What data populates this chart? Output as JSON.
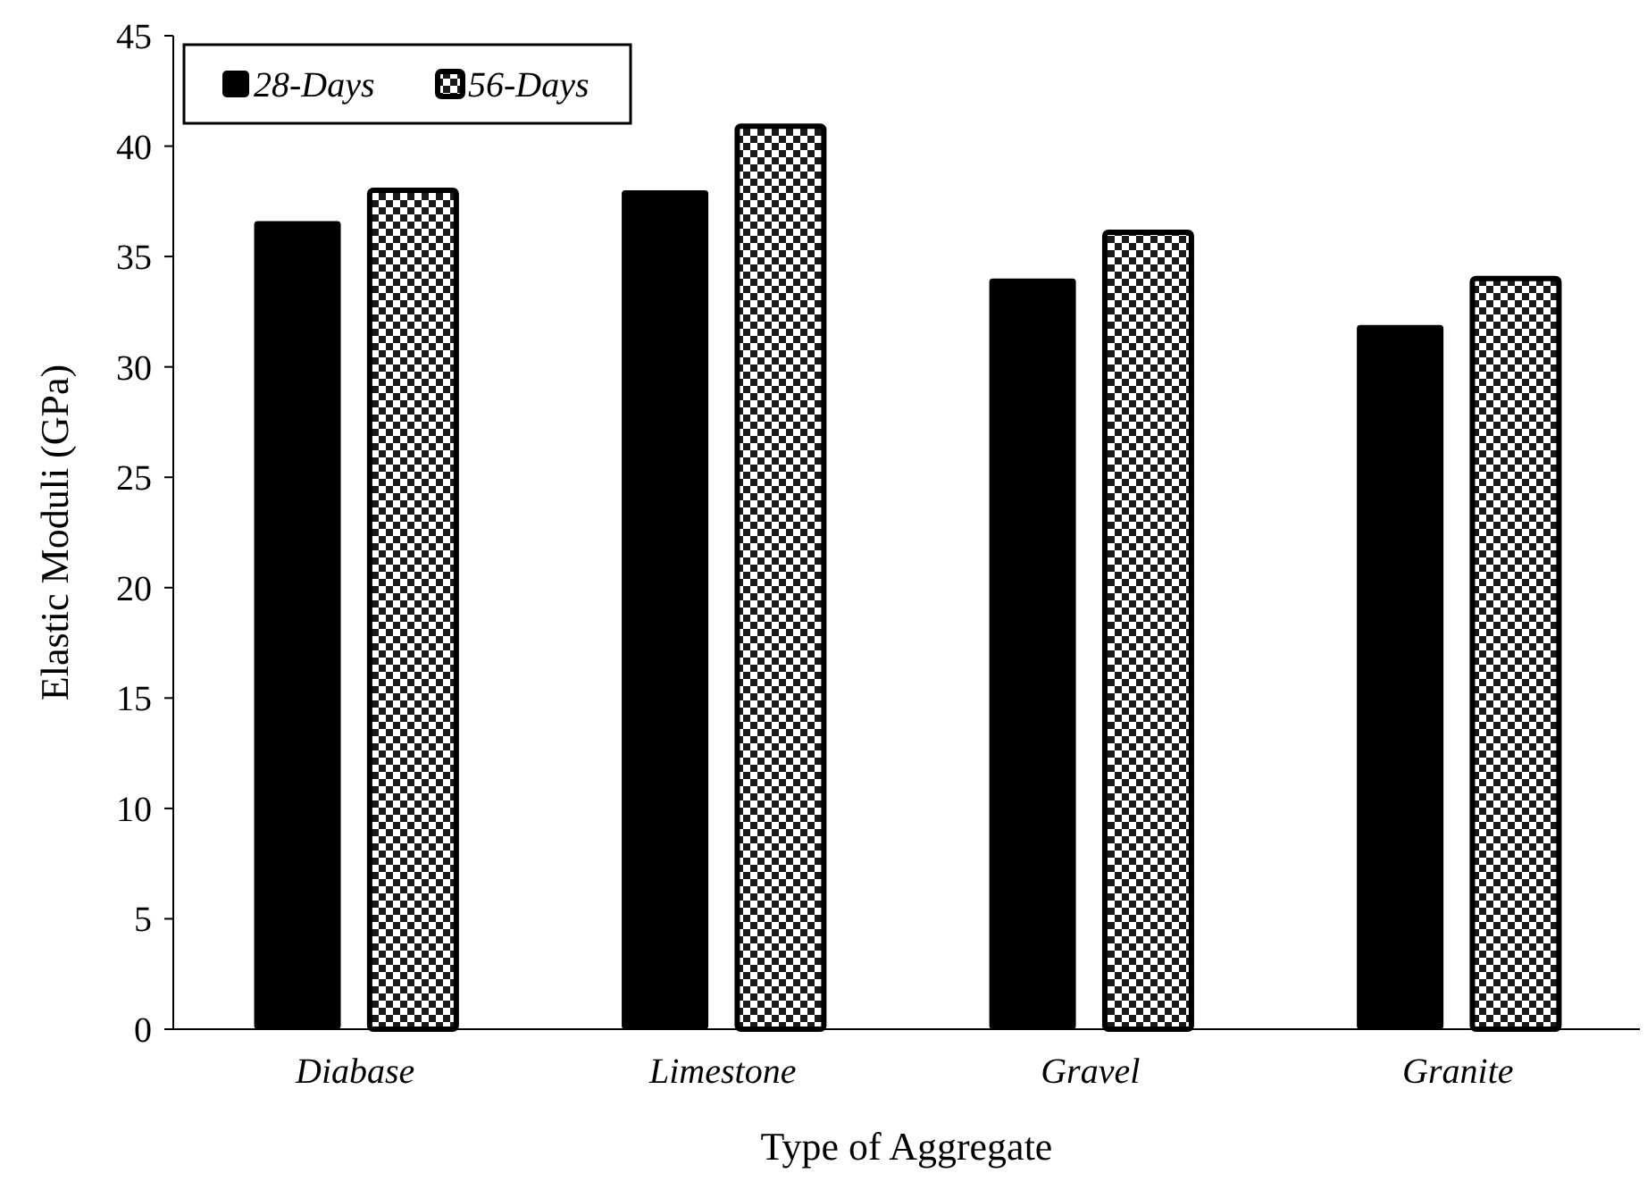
{
  "chart_data": {
    "type": "bar",
    "xlabel": "Type of Aggregate",
    "ylabel": "Elastic Moduli (GPa)",
    "categories": [
      "Diabase",
      "Limestone",
      "Gravel",
      "Granite"
    ],
    "series": [
      {
        "name": "28-Days",
        "color": "#000000",
        "values": [
          36.6,
          38.0,
          34.0,
          31.9
        ]
      },
      {
        "name": "56-Days",
        "color": "#ffffff",
        "values": [
          38.0,
          40.9,
          36.1,
          34.0
        ]
      }
    ],
    "ylim": [
      0,
      45
    ],
    "yticks": [
      0,
      5,
      10,
      15,
      20,
      25,
      30,
      35,
      40,
      45
    ],
    "grid": false,
    "legend": "top left"
  }
}
